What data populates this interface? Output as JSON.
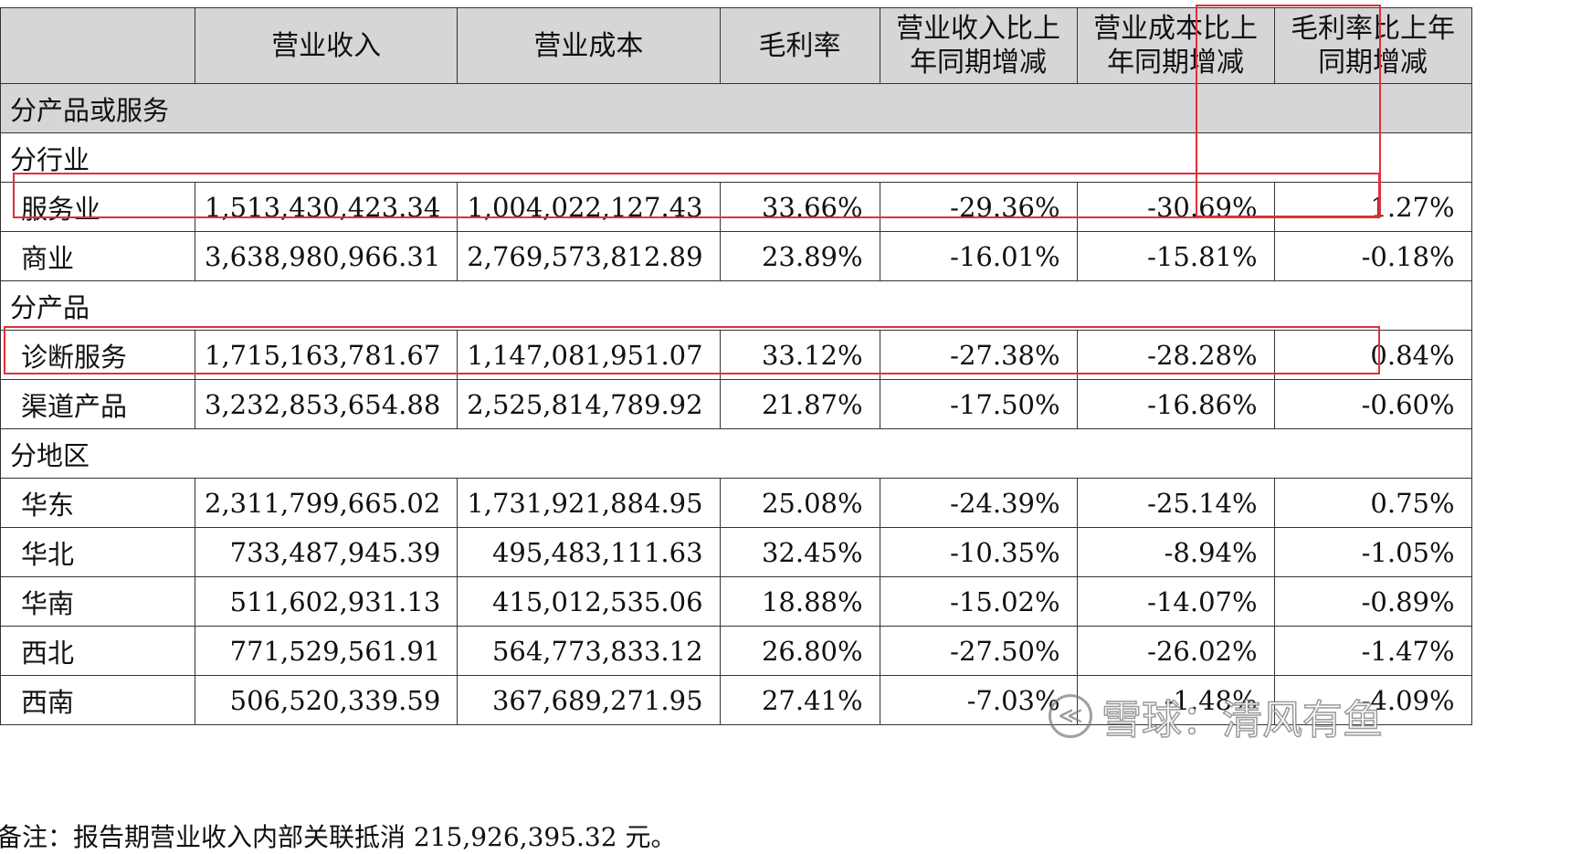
{
  "table": {
    "headers": [
      "",
      "营业收入",
      "营业成本",
      "毛利率",
      "营业收入比上年同期增减",
      "营业成本比上年同期增减",
      "毛利率比上年同期增减"
    ],
    "header_lines": [
      [
        ""
      ],
      [
        "营业收入"
      ],
      [
        "营业成本"
      ],
      [
        "毛利率"
      ],
      [
        "营业收入比上",
        "年同期增减"
      ],
      [
        "营业成本比上",
        "年同期增减"
      ],
      [
        "毛利率比上年",
        "同期增减"
      ]
    ],
    "section": "分产品或服务",
    "groups": [
      {
        "label": "分行业",
        "rows": [
          {
            "name": "服务业",
            "values": [
              "1,513,430,423.34",
              "1,004,022,127.43",
              "33.66%",
              "-29.36%",
              "-30.69%",
              "1.27%"
            ]
          },
          {
            "name": "商业",
            "values": [
              "3,638,980,966.31",
              "2,769,573,812.89",
              "23.89%",
              "-16.01%",
              "-15.81%",
              "-0.18%"
            ]
          }
        ]
      },
      {
        "label": "分产品",
        "rows": [
          {
            "name": "诊断服务",
            "values": [
              "1,715,163,781.67",
              "1,147,081,951.07",
              "33.12%",
              "-27.38%",
              "-28.28%",
              "0.84%"
            ]
          },
          {
            "name": "渠道产品",
            "values": [
              "3,232,853,654.88",
              "2,525,814,789.92",
              "21.87%",
              "-17.50%",
              "-16.86%",
              "-0.60%"
            ]
          }
        ]
      },
      {
        "label": "分地区",
        "rows": [
          {
            "name": "华东",
            "values": [
              "2,311,799,665.02",
              "1,731,921,884.95",
              "25.08%",
              "-24.39%",
              "-25.14%",
              "0.75%"
            ]
          },
          {
            "name": "华北",
            "values": [
              "733,487,945.39",
              "495,483,111.63",
              "32.45%",
              "-10.35%",
              "-8.94%",
              "-1.05%"
            ]
          },
          {
            "name": "华南",
            "values": [
              "511,602,931.13",
              "415,012,535.06",
              "18.88%",
              "-15.02%",
              "-14.07%",
              "-0.89%"
            ]
          },
          {
            "name": "西北",
            "values": [
              "771,529,561.91",
              "564,773,833.12",
              "26.80%",
              "-27.50%",
              "-26.02%",
              "-1.47%"
            ]
          },
          {
            "name": "西南",
            "values": [
              "506,520,339.59",
              "367,689,271.95",
              "27.41%",
              "-7.03%",
              "-1.48%",
              "-4.09%"
            ]
          }
        ]
      }
    ]
  },
  "note": "备注：报告期营业收入内部关联抵消 215,926,395.32 元。",
  "watermark": {
    "logo_glyph": "≪",
    "text": "雪球：清风有鱼"
  },
  "colors": {
    "header_bg": "#d6d6d6",
    "highlight": "#e0303a"
  }
}
